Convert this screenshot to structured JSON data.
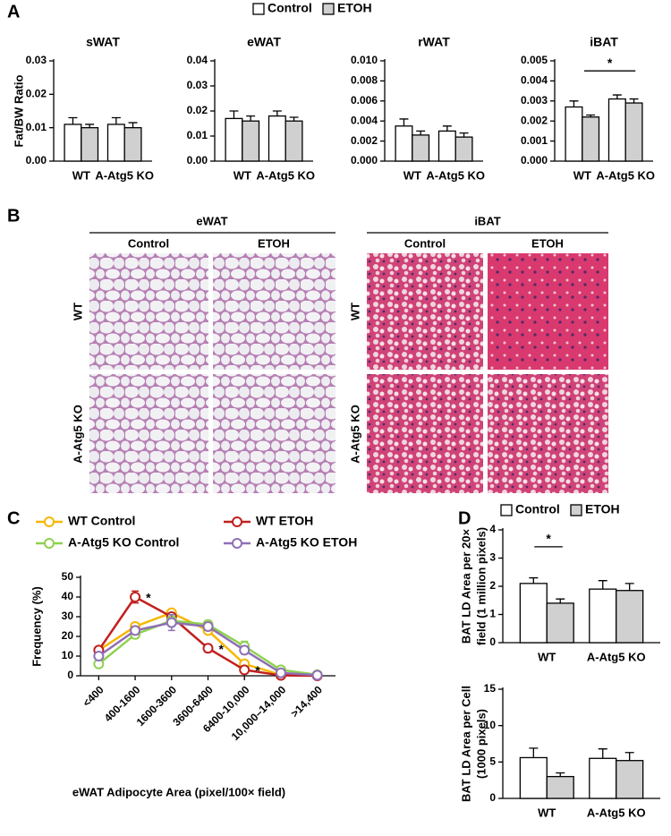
{
  "panel_labels": [
    "A",
    "B",
    "C",
    "D"
  ],
  "histology": [
    {
      "title": "eWAT",
      "columns": [
        "Control",
        "ETOH"
      ],
      "rows": [
        "WT",
        "A-Atg5 KO"
      ]
    },
    {
      "title": "iBAT",
      "columns": [
        "Control",
        "ETOH"
      ],
      "rows": [
        "WT",
        "A-Atg5 KO"
      ]
    }
  ],
  "chart_data": [
    {
      "type": "bar",
      "title": "sWAT",
      "ylabel": "Fat/BW Ratio",
      "categories": [
        "WT",
        "A-Atg5 KO"
      ],
      "series": [
        {
          "name": "Control",
          "color": "#ffffff",
          "values": [
            0.011,
            0.011
          ],
          "errors": [
            0.002,
            0.002
          ]
        },
        {
          "name": "ETOH",
          "color": "#d0d0d0",
          "values": [
            0.01,
            0.01
          ],
          "errors": [
            0.001,
            0.0015
          ]
        }
      ],
      "ylim": [
        0,
        0.03
      ],
      "yticks": [
        {
          "value": 0,
          "label": "0.00"
        },
        {
          "value": 0.01,
          "label": "0.01"
        },
        {
          "value": 0.02,
          "label": "0.02"
        },
        {
          "value": 0.03,
          "label": "0.03"
        }
      ]
    },
    {
      "type": "bar",
      "title": "eWAT",
      "categories": [
        "WT",
        "A-Atg5 KO"
      ],
      "series": [
        {
          "name": "Control",
          "color": "#ffffff",
          "values": [
            0.017,
            0.018
          ],
          "errors": [
            0.003,
            0.002
          ]
        },
        {
          "name": "ETOH",
          "color": "#d0d0d0",
          "values": [
            0.016,
            0.016
          ],
          "errors": [
            0.002,
            0.0015
          ]
        }
      ],
      "ylim": [
        0,
        0.04
      ],
      "yticks": [
        {
          "value": 0,
          "label": "0.00"
        },
        {
          "value": 0.01,
          "label": "0.01"
        },
        {
          "value": 0.02,
          "label": "0.02"
        },
        {
          "value": 0.03,
          "label": "0.03"
        },
        {
          "value": 0.04,
          "label": "0.04"
        }
      ]
    },
    {
      "type": "bar",
      "title": "rWAT",
      "categories": [
        "WT",
        "A-Atg5 KO"
      ],
      "series": [
        {
          "name": "Control",
          "color": "#ffffff",
          "values": [
            0.0035,
            0.003
          ],
          "errors": [
            0.0007,
            0.0005
          ]
        },
        {
          "name": "ETOH",
          "color": "#d0d0d0",
          "values": [
            0.0026,
            0.0024
          ],
          "errors": [
            0.0004,
            0.0004
          ]
        }
      ],
      "ylim": [
        0,
        0.01
      ],
      "yticks": [
        {
          "value": 0,
          "label": "0.000"
        },
        {
          "value": 0.002,
          "label": "0.002"
        },
        {
          "value": 0.004,
          "label": "0.004"
        },
        {
          "value": 0.006,
          "label": "0.006"
        },
        {
          "value": 0.008,
          "label": "0.008"
        },
        {
          "value": 0.01,
          "label": "0.010"
        }
      ]
    },
    {
      "type": "bar",
      "title": "iBAT",
      "categories": [
        "WT",
        "A-Atg5 KO"
      ],
      "annotations": [
        "*"
      ],
      "series": [
        {
          "name": "Control",
          "color": "#ffffff",
          "values": [
            0.0027,
            0.0031
          ],
          "errors": [
            0.0003,
            0.0002
          ]
        },
        {
          "name": "ETOH",
          "color": "#d0d0d0",
          "values": [
            0.0022,
            0.0029
          ],
          "errors": [
            0.0001,
            0.0002
          ]
        }
      ],
      "ylim": [
        0,
        0.005
      ],
      "yticks": [
        {
          "value": 0,
          "label": "0.000"
        },
        {
          "value": 0.001,
          "label": "0.001"
        },
        {
          "value": 0.002,
          "label": "0.002"
        },
        {
          "value": 0.003,
          "label": "0.003"
        },
        {
          "value": 0.004,
          "label": "0.004"
        },
        {
          "value": 0.005,
          "label": "0.005"
        }
      ]
    },
    {
      "type": "line",
      "ylabel": "Frequency (%)",
      "xlabel": "eWAT Adipocyte Area (pixel/100× field)",
      "categories": [
        "<400",
        "400-1600",
        "1600-3600",
        "3600-6400",
        "6400-10,000",
        "10,000–14,000",
        ">14,400"
      ],
      "annotations": [
        "*",
        "*",
        "*"
      ],
      "series": [
        {
          "name": "WT Control",
          "color": "#f5b800",
          "values": [
            13,
            25,
            32,
            23,
            6,
            0.5,
            0.3
          ],
          "errors": [
            1.5,
            2,
            1,
            1.5,
            1,
            0.3,
            0.2
          ]
        },
        {
          "name": "WT ETOH",
          "color": "#c0201e",
          "values": [
            13,
            40,
            30,
            14,
            3,
            0.2,
            0
          ],
          "errors": [
            1.5,
            3,
            1.5,
            2,
            0.5,
            0.2,
            0
          ]
        },
        {
          "name": "A-Atg5 KO Control",
          "color": "#8fd14f",
          "values": [
            6,
            21,
            28,
            26,
            15,
            3,
            0.5
          ],
          "errors": [
            1.5,
            2,
            2,
            2,
            2.5,
            1,
            0.3
          ]
        },
        {
          "name": "A-Atg5 KO ETOH",
          "color": "#8e6fb5",
          "values": [
            10,
            23,
            27,
            25,
            13,
            1.5,
            0.3
          ],
          "errors": [
            1.5,
            2,
            4,
            2,
            2,
            0.5,
            0.2
          ]
        }
      ],
      "ylim": [
        0,
        50
      ],
      "yticks": [
        0,
        10,
        20,
        30,
        40,
        50
      ]
    },
    {
      "type": "bar",
      "ylabel": [
        "BAT LD Area per 20×",
        "field (1 million pixels)"
      ],
      "categories": [
        "WT",
        "A-Atg5 KO"
      ],
      "annotations": [
        "*"
      ],
      "series": [
        {
          "name": "Control",
          "color": "#ffffff",
          "values": [
            2.1,
            1.9
          ],
          "errors": [
            0.2,
            0.3
          ]
        },
        {
          "name": "ETOH",
          "color": "#d0d0d0",
          "values": [
            1.4,
            1.85
          ],
          "errors": [
            0.15,
            0.25
          ]
        }
      ],
      "ylim": [
        0,
        4
      ],
      "yticks": [
        0,
        1,
        2,
        3,
        4
      ]
    },
    {
      "type": "bar",
      "ylabel": [
        "BAT LD Area per Cell",
        "(1000 pixels)"
      ],
      "categories": [
        "WT",
        "A-Atg5 KO"
      ],
      "series": [
        {
          "name": "Control",
          "color": "#ffffff",
          "values": [
            5.6,
            5.5
          ],
          "errors": [
            1.3,
            1.3
          ]
        },
        {
          "name": "ETOH",
          "color": "#d0d0d0",
          "values": [
            3.0,
            5.2
          ],
          "errors": [
            0.5,
            1.1
          ]
        }
      ],
      "ylim": [
        0,
        15
      ],
      "yticks": [
        0,
        5,
        10,
        15
      ]
    }
  ]
}
